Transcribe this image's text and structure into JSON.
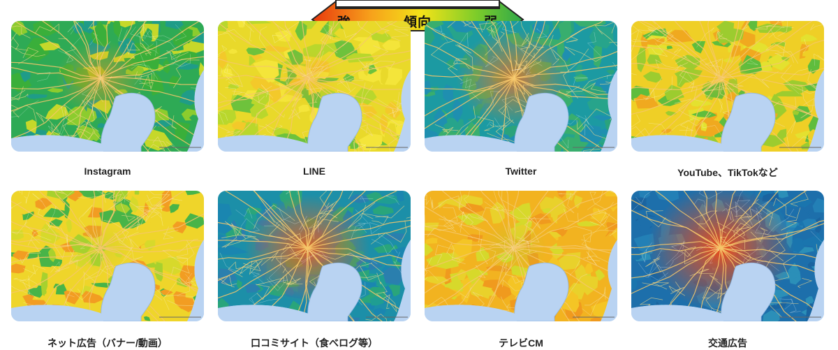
{
  "legend": {
    "strong": "強",
    "middle": "傾向",
    "weak": "弱",
    "colors": [
      "#e8380d",
      "#f7a21b",
      "#f3e318",
      "#7ccc2a",
      "#2ea84a"
    ]
  },
  "maps": [
    {
      "caption": "Instagram",
      "palette": [
        "#2eaa55",
        "#8ccc2e",
        "#1f9c88",
        "#c6d82a",
        "#3aaf3a"
      ],
      "hub": "#f39a1f",
      "hub_strength": 0.45
    },
    {
      "caption": "LINE",
      "palette": [
        "#e9d92a",
        "#b9d72c",
        "#f4e53a",
        "#6ec23c",
        "#f3c92a"
      ],
      "hub": "#eea21e",
      "hub_strength": 0.25
    },
    {
      "caption": "Twitter",
      "palette": [
        "#1c9aa2",
        "#27a48b",
        "#38ae6e",
        "#1f8fb0",
        "#2aa37c"
      ],
      "hub": "#f07a1c",
      "hub_strength": 0.7
    },
    {
      "caption": "YouTube、TikTokなど",
      "palette": [
        "#efcf26",
        "#f0a91f",
        "#9ccc2f",
        "#e4e12f",
        "#5fbd3d"
      ],
      "hub": "#f2b224",
      "hub_strength": 0.2
    },
    {
      "caption": "ネット広告（バナー/動画）",
      "palette": [
        "#efd52a",
        "#a7d12e",
        "#f29d22",
        "#48b448",
        "#d7d92b"
      ],
      "hub": "#a4cf2e",
      "hub_strength": 0.2
    },
    {
      "caption": "口コミサイト（食べログ等）",
      "palette": [
        "#1c8fa8",
        "#1f9e92",
        "#2a7fae",
        "#29a57b",
        "#1a86b0"
      ],
      "hub": "#f0621b",
      "hub_strength": 0.8
    },
    {
      "caption": "テレビCM",
      "palette": [
        "#f2b320",
        "#f09a1e",
        "#e9d12b",
        "#f4c525",
        "#d7d92b"
      ],
      "hub": "#a9d32e",
      "hub_strength": 0.25
    },
    {
      "caption": "交通広告",
      "palette": [
        "#1d6fab",
        "#2380b6",
        "#1a64a0",
        "#2b8fb8",
        "#1a75ae"
      ],
      "hub": "#ef4c18",
      "hub_strength": 1.0
    }
  ]
}
